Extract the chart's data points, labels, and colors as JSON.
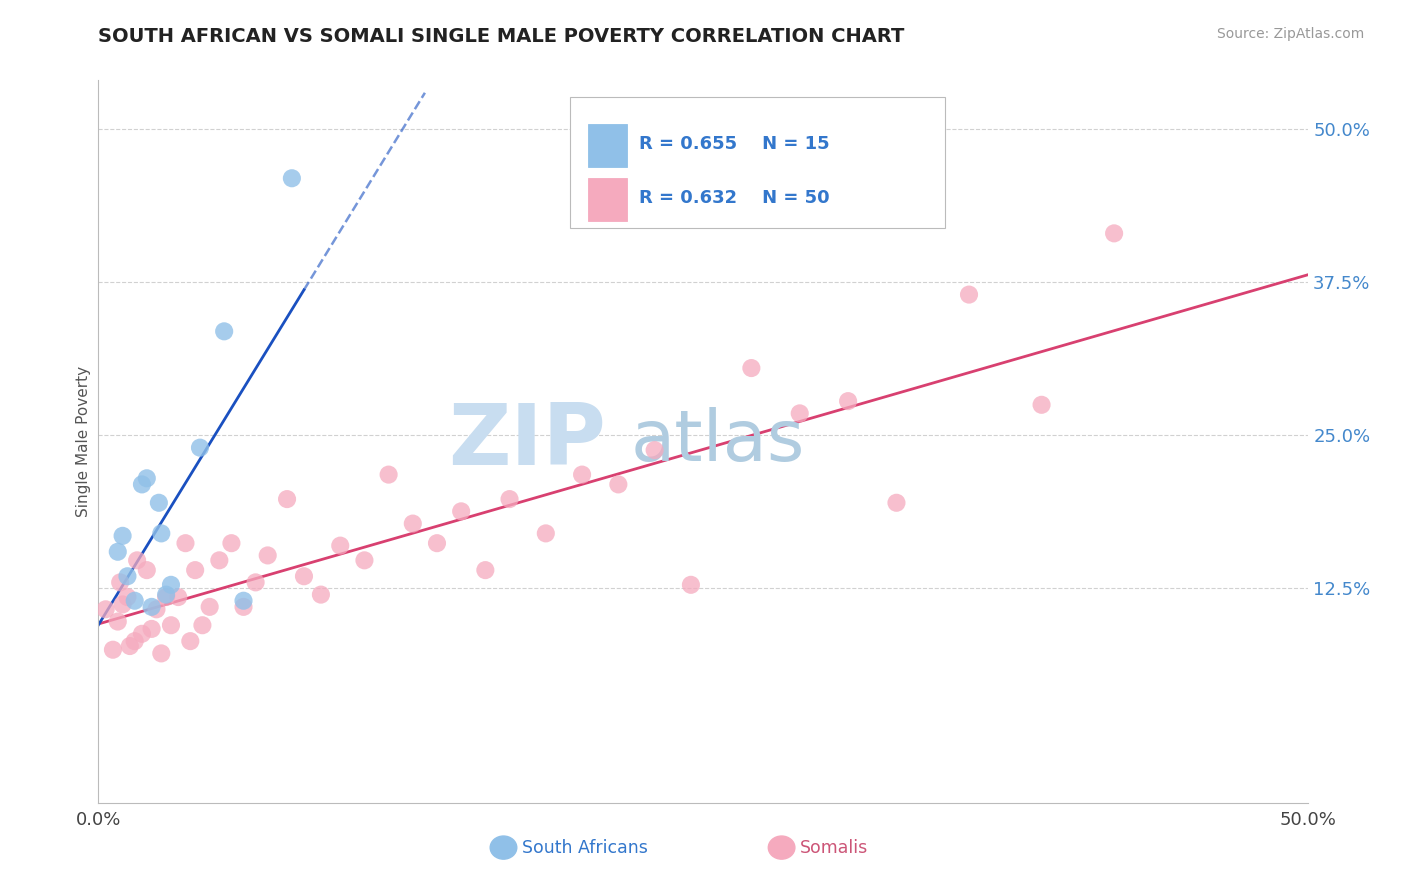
{
  "title": "SOUTH AFRICAN VS SOMALI SINGLE MALE POVERTY CORRELATION CHART",
  "source": "Source: ZipAtlas.com",
  "ylabel": "Single Male Poverty",
  "xlim": [
    0.0,
    0.5
  ],
  "ylim": [
    -0.05,
    0.54
  ],
  "ytick_labels": [
    "12.5%",
    "25.0%",
    "37.5%",
    "50.0%"
  ],
  "ytick_values": [
    0.125,
    0.25,
    0.375,
    0.5
  ],
  "xtick_labels": [
    "0.0%",
    "50.0%"
  ],
  "xtick_values": [
    0.0,
    0.5
  ],
  "background_color": "#ffffff",
  "watermark_zip": "ZIP",
  "watermark_atlas": "atlas",
  "legend_r1": "R = 0.655",
  "legend_n1": "N = 15",
  "legend_r2": "R = 0.632",
  "legend_n2": "N = 50",
  "sa_scatter_color": "#90c0e8",
  "somali_scatter_color": "#f5aabe",
  "sa_line_color": "#1a50c0",
  "somali_line_color": "#d84070",
  "grid_color": "#cccccc",
  "title_color": "#222222",
  "right_tick_color": "#4488cc",
  "legend_text_color": "#3377cc",
  "sa_points_x": [
    0.008,
    0.01,
    0.012,
    0.015,
    0.018,
    0.02,
    0.022,
    0.025,
    0.026,
    0.028,
    0.03,
    0.042,
    0.052,
    0.06,
    0.08
  ],
  "sa_points_y": [
    0.155,
    0.168,
    0.135,
    0.115,
    0.21,
    0.215,
    0.11,
    0.195,
    0.17,
    0.12,
    0.128,
    0.24,
    0.335,
    0.115,
    0.46
  ],
  "somali_points_x": [
    0.003,
    0.006,
    0.008,
    0.009,
    0.01,
    0.012,
    0.013,
    0.015,
    0.016,
    0.018,
    0.02,
    0.022,
    0.024,
    0.026,
    0.028,
    0.03,
    0.033,
    0.036,
    0.038,
    0.04,
    0.043,
    0.046,
    0.05,
    0.055,
    0.06,
    0.065,
    0.07,
    0.078,
    0.085,
    0.092,
    0.1,
    0.11,
    0.12,
    0.13,
    0.14,
    0.15,
    0.16,
    0.17,
    0.185,
    0.2,
    0.215,
    0.23,
    0.245,
    0.27,
    0.29,
    0.31,
    0.33,
    0.36,
    0.39,
    0.42
  ],
  "somali_points_y": [
    0.108,
    0.075,
    0.098,
    0.13,
    0.112,
    0.118,
    0.078,
    0.082,
    0.148,
    0.088,
    0.14,
    0.092,
    0.108,
    0.072,
    0.118,
    0.095,
    0.118,
    0.162,
    0.082,
    0.14,
    0.095,
    0.11,
    0.148,
    0.162,
    0.11,
    0.13,
    0.152,
    0.198,
    0.135,
    0.12,
    0.16,
    0.148,
    0.218,
    0.178,
    0.162,
    0.188,
    0.14,
    0.198,
    0.17,
    0.218,
    0.21,
    0.238,
    0.128,
    0.305,
    0.268,
    0.278,
    0.195,
    0.365,
    0.275,
    0.415
  ],
  "bottom_legend_sa_label": "South Africans",
  "bottom_legend_somali_label": "Somalis",
  "bottom_legend_sa_color": "#3377cc",
  "bottom_legend_somali_color": "#cc5577"
}
